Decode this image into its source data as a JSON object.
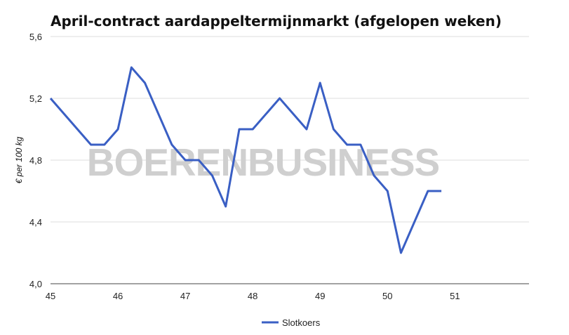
{
  "chart_data": {
    "type": "line",
    "title": "April-contract aardappeltermijnmarkt (afgelopen weken)",
    "xlabel": "",
    "ylabel": "€ per 100 kg",
    "xlim": [
      45,
      52.1
    ],
    "ylim": [
      4.0,
      5.6
    ],
    "x_ticks": [
      "45",
      "46",
      "47",
      "48",
      "49",
      "50",
      "51"
    ],
    "y_ticks": [
      "4,0",
      "4,4",
      "4,8",
      "5,2",
      "5,6"
    ],
    "grid": true,
    "legend": "bottom",
    "watermark": "BOERENBUSINESS",
    "series": [
      {
        "name": "Slotkoers",
        "color": "#3a5fc4",
        "x": [
          45.0,
          45.6,
          45.8,
          46.0,
          46.2,
          46.4,
          46.8,
          47.0,
          47.2,
          47.4,
          47.6,
          47.8,
          48.0,
          48.4,
          48.8,
          49.0,
          49.2,
          49.4,
          49.6,
          49.8,
          50.0,
          50.2,
          50.6,
          50.8
        ],
        "values": [
          5.2,
          4.9,
          4.9,
          5.0,
          5.4,
          5.3,
          4.9,
          4.8,
          4.8,
          4.7,
          4.5,
          5.0,
          5.0,
          5.2,
          5.0,
          5.3,
          5.0,
          4.9,
          4.9,
          4.7,
          4.6,
          4.2,
          4.6,
          4.6
        ]
      }
    ]
  }
}
